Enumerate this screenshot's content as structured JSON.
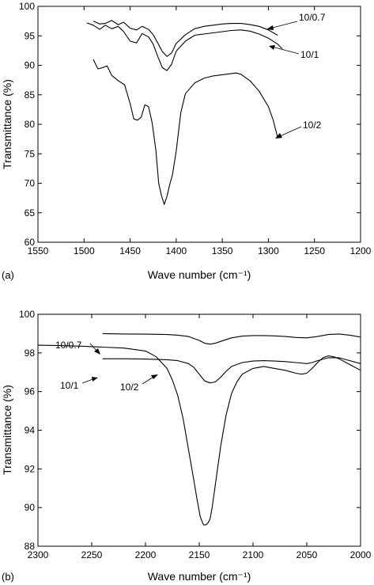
{
  "chart_data": [
    {
      "type": "line",
      "panel_label": "(a)",
      "xlabel": "Wave number (cm⁻¹)",
      "ylabel": "Transmittance (%)",
      "xlim": [
        1550,
        1200
      ],
      "ylim": [
        60,
        100
      ],
      "x_reversed": true,
      "x_ticks": [
        1550,
        1500,
        1450,
        1400,
        1350,
        1300,
        1250,
        1200
      ],
      "y_ticks": [
        60,
        65,
        70,
        75,
        80,
        85,
        90,
        95,
        100
      ],
      "grid": false,
      "series": [
        {
          "name": "10/0.7",
          "x": [
            1490,
            1483,
            1477,
            1470,
            1463,
            1457,
            1450,
            1443,
            1437,
            1430,
            1425,
            1420,
            1415,
            1410,
            1405,
            1400,
            1390,
            1380,
            1370,
            1360,
            1350,
            1340,
            1330,
            1320,
            1310,
            1300,
            1290
          ],
          "y": [
            97.5,
            97.0,
            97.1,
            97.6,
            96.9,
            97.3,
            96.3,
            96.0,
            96.6,
            96.1,
            95.2,
            93.8,
            92.3,
            91.5,
            92.1,
            93.7,
            95.2,
            96.2,
            96.6,
            96.8,
            97.0,
            97.1,
            97.1,
            96.9,
            96.6,
            96.0,
            95.1
          ]
        },
        {
          "name": "10/1",
          "x": [
            1497,
            1490,
            1483,
            1477,
            1470,
            1463,
            1457,
            1450,
            1443,
            1437,
            1430,
            1425,
            1420,
            1415,
            1410,
            1405,
            1400,
            1390,
            1380,
            1370,
            1360,
            1350,
            1340,
            1330,
            1320,
            1310,
            1300,
            1290,
            1285
          ],
          "y": [
            97.2,
            96.8,
            96.1,
            96.8,
            96.2,
            96.6,
            95.7,
            94.1,
            93.8,
            95.4,
            94.8,
            93.6,
            91.5,
            89.6,
            89.1,
            90.2,
            92.4,
            94.1,
            95.1,
            95.3,
            95.5,
            95.7,
            95.9,
            96.0,
            95.8,
            95.3,
            94.6,
            93.6,
            92.8
          ]
        },
        {
          "name": "10/2",
          "x": [
            1490,
            1485,
            1480,
            1475,
            1470,
            1463,
            1456,
            1450,
            1446,
            1442,
            1438,
            1434,
            1430,
            1426,
            1422,
            1419,
            1416,
            1413,
            1410,
            1407,
            1404,
            1400,
            1395,
            1390,
            1380,
            1370,
            1360,
            1350,
            1340,
            1335,
            1330,
            1320,
            1310,
            1300,
            1295,
            1290
          ],
          "y": [
            91.0,
            89.4,
            89.6,
            89.9,
            88.3,
            87.4,
            86.7,
            83.5,
            80.9,
            80.7,
            81.2,
            83.3,
            83.0,
            80.2,
            75.5,
            70.0,
            67.9,
            66.4,
            67.8,
            69.8,
            71.5,
            75.5,
            82.0,
            85.2,
            87.0,
            87.8,
            88.2,
            88.4,
            88.6,
            88.7,
            88.5,
            87.4,
            85.6,
            83.0,
            80.8,
            77.8
          ]
        }
      ],
      "annotations": [
        "10/0.7",
        "10/1",
        "10/2"
      ]
    },
    {
      "type": "line",
      "panel_label": "(b)",
      "xlabel": "Wave number (cm⁻¹)",
      "ylabel": "Transmittance (%)",
      "xlim": [
        2300,
        2000
      ],
      "ylim": [
        88,
        100
      ],
      "x_reversed": true,
      "x_ticks": [
        2300,
        2250,
        2200,
        2150,
        2100,
        2050,
        2000
      ],
      "y_ticks": [
        88,
        90,
        92,
        94,
        96,
        98,
        100
      ],
      "grid": false,
      "series": [
        {
          "name": "10/0.7",
          "x": [
            2240,
            2220,
            2200,
            2180,
            2170,
            2160,
            2150,
            2145,
            2140,
            2135,
            2130,
            2120,
            2110,
            2100,
            2090,
            2080,
            2070,
            2060,
            2050,
            2040,
            2030,
            2020,
            2010,
            2000
          ],
          "y": [
            99.0,
            98.98,
            98.97,
            98.95,
            98.92,
            98.85,
            98.65,
            98.5,
            98.45,
            98.5,
            98.6,
            98.78,
            98.87,
            98.9,
            98.9,
            98.88,
            98.85,
            98.8,
            98.78,
            98.85,
            98.95,
            98.98,
            98.92,
            98.82
          ]
        },
        {
          "name": "10/1",
          "x": [
            2240,
            2220,
            2200,
            2180,
            2170,
            2160,
            2155,
            2150,
            2145,
            2140,
            2135,
            2130,
            2125,
            2120,
            2110,
            2100,
            2090,
            2080,
            2070,
            2060,
            2050,
            2045,
            2040,
            2030,
            2020,
            2010,
            2000
          ],
          "y": [
            97.7,
            97.7,
            97.68,
            97.65,
            97.6,
            97.45,
            97.25,
            96.9,
            96.55,
            96.45,
            96.5,
            96.75,
            97.05,
            97.3,
            97.5,
            97.58,
            97.6,
            97.58,
            97.55,
            97.5,
            97.45,
            97.5,
            97.6,
            97.75,
            97.75,
            97.6,
            97.45
          ]
        },
        {
          "name": "10/2",
          "x": [
            2300,
            2280,
            2260,
            2240,
            2220,
            2200,
            2190,
            2180,
            2175,
            2170,
            2165,
            2160,
            2155,
            2152,
            2149,
            2146,
            2144,
            2142,
            2140,
            2138,
            2135,
            2130,
            2125,
            2120,
            2115,
            2110,
            2100,
            2090,
            2080,
            2070,
            2060,
            2055,
            2050,
            2045,
            2040,
            2035,
            2030,
            2025,
            2020,
            2010,
            2000
          ],
          "y": [
            98.4,
            98.38,
            98.35,
            98.3,
            98.25,
            98.1,
            97.8,
            97.2,
            96.6,
            95.8,
            94.6,
            93.0,
            91.4,
            90.4,
            89.5,
            89.1,
            89.1,
            89.2,
            89.4,
            90.0,
            91.2,
            93.2,
            94.8,
            95.9,
            96.5,
            96.9,
            97.2,
            97.3,
            97.2,
            97.1,
            96.95,
            96.9,
            96.95,
            97.2,
            97.5,
            97.75,
            97.85,
            97.8,
            97.7,
            97.4,
            97.1
          ]
        }
      ],
      "annotations": [
        "10/0.7",
        "10/1",
        "10/2"
      ]
    }
  ]
}
